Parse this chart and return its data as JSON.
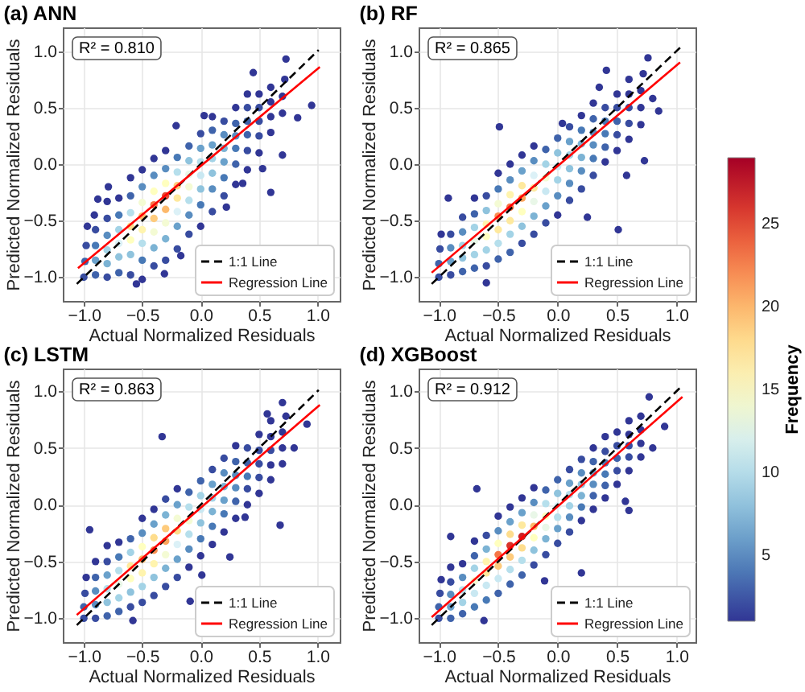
{
  "chart_data": [
    {
      "type": "scatter",
      "title": "(a) ANN",
      "xlabel": "Actual Normalized Residuals",
      "ylabel": "Predicted Normalized Residuals",
      "annotations": [
        "R² = 0.810"
      ],
      "xlim": [
        -1.18,
        1.19
      ],
      "ylim": [
        -1.21,
        1.21
      ],
      "xticks": [
        {
          "value": -1,
          "label": "−1.0"
        },
        {
          "value": -0.5,
          "label": "−0.5"
        },
        {
          "value": 0,
          "label": "0.0"
        },
        {
          "value": 0.5,
          "label": "0.5"
        },
        {
          "value": 1,
          "label": "1.0"
        }
      ],
      "yticks": [
        {
          "value": -1,
          "label": "−1.0"
        },
        {
          "value": -0.5,
          "label": "−0.5"
        },
        {
          "value": 0,
          "label": "0.0"
        },
        {
          "value": 0.5,
          "label": "0.5"
        },
        {
          "value": 1,
          "label": "1.0"
        }
      ],
      "grid": true,
      "legend": "bottom right",
      "clabel": "Frequency",
      "clim": [
        1,
        29
      ],
      "cticks": [
        5,
        10,
        15,
        20,
        25
      ],
      "series": [
        {
          "type": "scatter",
          "marker": "circle",
          "x": [
            -1,
            -0.99,
            -0.98,
            -0.97,
            -0.9,
            -0.9,
            -0.9,
            -0.9,
            -0.91,
            -0.8,
            -0.8,
            -0.8,
            -0.8,
            -0.8,
            -0.8,
            -0.7,
            -0.7,
            -0.7,
            -0.7,
            -0.7,
            -0.7,
            -0.6,
            -0.6,
            -0.6,
            -0.6,
            -0.6,
            -0.6,
            -0.6,
            -0.5,
            -0.5,
            -0.5,
            -0.5,
            -0.5,
            -0.5,
            -0.5,
            -0.5,
            -0.4,
            -0.4,
            -0.4,
            -0.4,
            -0.4,
            -0.4,
            -0.4,
            -0.4,
            -0.3,
            -0.3,
            -0.3,
            -0.3,
            -0.3,
            -0.3,
            -0.3,
            -0.3,
            -0.2,
            -0.2,
            -0.2,
            -0.2,
            -0.2,
            -0.2,
            -0.2,
            -0.21,
            -0.1,
            -0.1,
            -0.1,
            -0.1,
            -0.1,
            -0.1,
            -0.1,
            0,
            0,
            0,
            0,
            0,
            0,
            0,
            0.03,
            0.1,
            0.1,
            0.1,
            0.1,
            0.1,
            0.1,
            0.1,
            0.2,
            0.2,
            0.2,
            0.2,
            0.2,
            0.2,
            0.3,
            0.3,
            0.3,
            0.3,
            0.3,
            0.3,
            0.4,
            0.4,
            0.4,
            0.4,
            0.4,
            0.4,
            0.5,
            0.5,
            0.5,
            0.5,
            0.5,
            0.6,
            0.6,
            0.6,
            0.6,
            0.7,
            0.7,
            0.72,
            0.45,
            0.73,
            0.95,
            0.83,
            0.7,
            0.6,
            0.22,
            -0.55,
            -0.31,
            -0.17,
            0.53,
            0.36,
            -0.88,
            -0.79
          ],
          "values": [
            -1,
            -0.86,
            -0.72,
            -0.55,
            -0.98,
            -0.85,
            -0.72,
            -0.58,
            -0.45,
            -1,
            -0.88,
            -0.76,
            -0.63,
            -0.48,
            -0.33,
            -0.96,
            -0.82,
            -0.7,
            -0.58,
            -0.45,
            -0.3,
            -0.98,
            -0.8,
            -0.67,
            -0.55,
            -0.43,
            -0.28,
            -0.12,
            -1.02,
            -0.85,
            -0.7,
            -0.58,
            -0.46,
            -0.34,
            -0.2,
            -0.05,
            -0.9,
            -0.74,
            -0.6,
            -0.48,
            -0.36,
            -0.24,
            -0.1,
            0.05,
            -0.85,
            -0.66,
            -0.52,
            -0.4,
            -0.28,
            -0.17,
            -0.04,
            0.12,
            -0.75,
            -0.55,
            -0.42,
            -0.3,
            -0.19,
            -0.07,
            0.06,
            0.34,
            -0.62,
            -0.45,
            -0.32,
            -0.2,
            -0.09,
            0.03,
            0.16,
            -0.55,
            -0.36,
            -0.22,
            -0.1,
            0.02,
            0.14,
            0.27,
            0.43,
            -0.42,
            -0.22,
            -0.08,
            0.05,
            0.17,
            0.3,
            0.42,
            -0.28,
            -0.12,
            0.02,
            0.14,
            0.26,
            0.38,
            -0.18,
            0,
            0.14,
            0.25,
            0.36,
            0.5,
            -0.05,
            0.12,
            0.26,
            0.38,
            0.5,
            0.62,
            0.1,
            0.25,
            0.38,
            0.5,
            0.62,
            0.28,
            0.42,
            0.55,
            0.68,
            0.45,
            0.6,
            0.75,
            0.81,
            0.93,
            0.52,
            0.41,
            0.08,
            -0.25,
            -0.38,
            -1.06,
            -0.97,
            -0.81,
            -0.04,
            -0.17,
            -0.31,
            -0.2
          ],
          "colors": [
            "#384ca0",
            "#3f63ab",
            "#384ca0",
            "#313695",
            "#3f63ab",
            "#6aa1cb",
            "#4879b6",
            "#384ca0",
            "#313695",
            "#384ca0",
            "#7cb3d4",
            "#a3d3e6",
            "#598dc0",
            "#384ca0",
            "#313695",
            "#3f63ab",
            "#8fc3dd",
            "#dcf1f7",
            "#a3d3e6",
            "#4879b6",
            "#313695",
            "#384ca0",
            "#8fc3dd",
            "#ffffbf",
            "#fedd8d",
            "#b6dfec",
            "#3f63ab",
            "#313695",
            "#313695",
            "#4879b6",
            "#b6dfec",
            "#fff4ae",
            "#fdb96b",
            "#f4fbd4",
            "#598dc0",
            "#313695",
            "#384ca0",
            "#7cb3d4",
            "#f4fbd4",
            "#fecb7c",
            "#f57647",
            "#ffffbf",
            "#598dc0",
            "#313695",
            "#384ca0",
            "#7cb3d4",
            "#f4fbd4",
            "#fdb96b",
            "#e44a33",
            "#ffffbf",
            "#598dc0",
            "#313695",
            "#384ca0",
            "#6aa1cb",
            "#dcf1f7",
            "#fee99e",
            "#fecb7c",
            "#b6dfec",
            "#4879b6",
            "#313695",
            "#384ca0",
            "#598dc0",
            "#b6dfec",
            "#f4fbd4",
            "#e9f7e8",
            "#8fc3dd",
            "#3f63ab",
            "#313695",
            "#4879b6",
            "#8fc3dd",
            "#c9e8f2",
            "#b6dfec",
            "#6aa1cb",
            "#384ca0",
            "#313695",
            "#384ca0",
            "#598dc0",
            "#8fc3dd",
            "#a3d3e6",
            "#6aa1cb",
            "#3f63ab",
            "#313695",
            "#384ca0",
            "#4879b6",
            "#6aa1cb",
            "#7cb3d4",
            "#598dc0",
            "#384ca0",
            "#313695",
            "#3f63ab",
            "#4879b6",
            "#598dc0",
            "#3f63ab",
            "#313695",
            "#313695",
            "#384ca0",
            "#3f63ab",
            "#3f63ab",
            "#384ca0",
            "#313695",
            "#313695",
            "#384ca0",
            "#384ca0",
            "#384ca0",
            "#313695",
            "#313695",
            "#313695",
            "#313695",
            "#313695",
            "#313695",
            "#313695",
            "#313695",
            "#313695",
            "#313695",
            "#313695",
            "#313695",
            "#313695",
            "#313695",
            "#313695",
            "#313695",
            "#313695",
            "#313695",
            "#313695",
            "#313695",
            "#313695",
            "#313695"
          ]
        },
        {
          "type": "line",
          "name": "1:1 Line",
          "color": "#000000",
          "line_style": "dashed",
          "x": [
            -1.06,
            1.01
          ],
          "values": [
            -1.06,
            1.01
          ]
        },
        {
          "type": "line",
          "name": "Regression Line",
          "color": "#ff0000",
          "line_style": "solid",
          "x": [
            -1.05,
            1.02
          ],
          "values": [
            -0.92,
            0.86
          ]
        }
      ]
    },
    {
      "type": "scatter",
      "title": "(b) RF",
      "xlabel": "Actual Normalized Residuals",
      "ylabel": "Predicted Normalized Residuals",
      "annotations": [
        "R² = 0.865"
      ],
      "xlim": [
        -1.17,
        1.16
      ],
      "ylim": [
        -1.21,
        1.21
      ],
      "xticks": [
        {
          "value": -1,
          "label": "−1.0"
        },
        {
          "value": -0.5,
          "label": "−0.5"
        },
        {
          "value": 0,
          "label": "0.0"
        },
        {
          "value": 0.5,
          "label": "0.5"
        },
        {
          "value": 1,
          "label": "1.0"
        }
      ],
      "yticks": [
        {
          "value": -1,
          "label": "−1.0"
        },
        {
          "value": -0.5,
          "label": "−0.5"
        },
        {
          "value": 0,
          "label": "0.0"
        },
        {
          "value": 0.5,
          "label": "0.5"
        },
        {
          "value": 1,
          "label": "1.0"
        }
      ],
      "grid": true,
      "legend": "bottom right",
      "series": [
        {
          "type": "scatter",
          "marker": "circle",
          "x": [
            -1,
            -1,
            -0.99,
            -0.98,
            -0.9,
            -0.9,
            -0.9,
            -0.9,
            -0.92,
            -0.8,
            -0.8,
            -0.8,
            -0.8,
            -0.8,
            -0.7,
            -0.7,
            -0.7,
            -0.7,
            -0.7,
            -0.7,
            -0.6,
            -0.6,
            -0.6,
            -0.6,
            -0.6,
            -0.6,
            -0.5,
            -0.5,
            -0.5,
            -0.5,
            -0.5,
            -0.5,
            -0.5,
            -0.4,
            -0.4,
            -0.4,
            -0.4,
            -0.4,
            -0.4,
            -0.4,
            -0.3,
            -0.3,
            -0.3,
            -0.3,
            -0.3,
            -0.3,
            -0.3,
            -0.2,
            -0.2,
            -0.2,
            -0.2,
            -0.2,
            -0.2,
            -0.2,
            -0.1,
            -0.1,
            -0.1,
            -0.1,
            -0.1,
            -0.1,
            0,
            0,
            0,
            0,
            0,
            0,
            0.04,
            0.1,
            0.1,
            0.1,
            0.1,
            0.1,
            0.1,
            0.2,
            0.2,
            0.2,
            0.2,
            0.2,
            0.2,
            0.3,
            0.3,
            0.3,
            0.3,
            0.3,
            0.3,
            0.4,
            0.4,
            0.4,
            0.4,
            0.4,
            0.41,
            0.5,
            0.5,
            0.5,
            0.5,
            0.5,
            0.6,
            0.6,
            0.6,
            0.6,
            0.6,
            0.7,
            0.7,
            0.7,
            0.72,
            -0.49,
            0.51,
            0.73,
            0.76,
            0.8,
            0.85,
            0.25,
            -0.6,
            0.58,
            0.35
          ],
          "values": [
            -1,
            -0.88,
            -0.75,
            -0.62,
            -0.98,
            -0.86,
            -0.74,
            -0.62,
            -0.3,
            -0.95,
            -0.83,
            -0.72,
            -0.6,
            -0.47,
            -0.92,
            -0.8,
            -0.68,
            -0.56,
            -0.44,
            -0.3,
            -0.9,
            -0.76,
            -0.64,
            -0.53,
            -0.41,
            -0.28,
            -0.84,
            -0.7,
            -0.58,
            -0.46,
            -0.35,
            -0.22,
            -0.08,
            -0.78,
            -0.62,
            -0.5,
            -0.38,
            -0.27,
            -0.14,
            0,
            -0.7,
            -0.55,
            -0.42,
            -0.3,
            -0.19,
            -0.06,
            0.08,
            -0.62,
            -0.46,
            -0.33,
            -0.21,
            -0.1,
            0.03,
            0.16,
            -0.52,
            -0.37,
            -0.24,
            -0.12,
            0,
            0.13,
            -0.45,
            -0.28,
            -0.14,
            -0.02,
            0.1,
            0.23,
            0.36,
            -0.32,
            -0.17,
            -0.04,
            0.08,
            0.2,
            0.33,
            -0.22,
            -0.06,
            0.06,
            0.18,
            0.3,
            0.43,
            -0.1,
            0.05,
            0.17,
            0.28,
            0.4,
            0.54,
            0.02,
            0.15,
            0.27,
            0.38,
            0.5,
            0.83,
            0.12,
            0.26,
            0.38,
            0.5,
            0.62,
            0.22,
            0.36,
            0.5,
            0.62,
            0.75,
            0.35,
            0.5,
            0.65,
            0.8,
            0.33,
            -0.58,
            0.03,
            0.94,
            0.58,
            0.47,
            -0.47,
            -1.05,
            -0.1,
            0.68
          ],
          "colors": [
            "#384ca0",
            "#3f63ab",
            "#384ca0",
            "#313695",
            "#384ca0",
            "#6aa1cb",
            "#598dc0",
            "#384ca0",
            "#313695",
            "#3f63ab",
            "#8fc3dd",
            "#a3d3e6",
            "#598dc0",
            "#384ca0",
            "#3f63ab",
            "#a3d3e6",
            "#e9f7e8",
            "#a3d3e6",
            "#3f63ab",
            "#313695",
            "#384ca0",
            "#a3d3e6",
            "#ffffbf",
            "#fff4ae",
            "#8fc3dd",
            "#384ca0",
            "#3f63ab",
            "#b6dfec",
            "#fee99e",
            "#f98e52",
            "#f4fbd4",
            "#4879b6",
            "#313695",
            "#3f63ab",
            "#a3d3e6",
            "#fee99e",
            "#f57647",
            "#fff4ae",
            "#598dc0",
            "#313695",
            "#384ca0",
            "#8fc3dd",
            "#ffffbf",
            "#fca55d",
            "#fee99e",
            "#6aa1cb",
            "#313695",
            "#384ca0",
            "#7cb3d4",
            "#e9f7e8",
            "#fee99e",
            "#dcf1f7",
            "#598dc0",
            "#313695",
            "#384ca0",
            "#6aa1cb",
            "#c9e8f2",
            "#f4fbd4",
            "#a3d3e6",
            "#3f63ab",
            "#313695",
            "#598dc0",
            "#a3d3e6",
            "#c9e8f2",
            "#8fc3dd",
            "#3f63ab",
            "#313695",
            "#384ca0",
            "#598dc0",
            "#8fc3dd",
            "#a3d3e6",
            "#6aa1cb",
            "#384ca0",
            "#384ca0",
            "#598dc0",
            "#7cb3d4",
            "#7cb3d4",
            "#4879b6",
            "#313695",
            "#384ca0",
            "#4879b6",
            "#598dc0",
            "#598dc0",
            "#3f63ab",
            "#313695",
            "#313695",
            "#3f63ab",
            "#4879b6",
            "#4879b6",
            "#384ca0",
            "#313695",
            "#313695",
            "#384ca0",
            "#3f63ab",
            "#384ca0",
            "#313695",
            "#313695",
            "#384ca0",
            "#384ca0",
            "#313695",
            "#313695",
            "#313695",
            "#313695",
            "#313695",
            "#313695",
            "#313695",
            "#313695",
            "#313695",
            "#313695",
            "#313695",
            "#313695",
            "#313695",
            "#313695",
            "#313695",
            "#313695"
          ]
        },
        {
          "type": "line",
          "name": "1:1 Line",
          "color": "#000000",
          "line_style": "dashed",
          "x": [
            -1.06,
            1.03
          ],
          "values": [
            -1.06,
            1.03
          ]
        },
        {
          "type": "line",
          "name": "Regression Line",
          "color": "#ff0000",
          "line_style": "solid",
          "x": [
            -1.06,
            1.03
          ],
          "values": [
            -0.96,
            0.9
          ]
        }
      ]
    },
    {
      "type": "scatter",
      "title": "(c) LSTM",
      "xlabel": "Actual Normalized Residuals",
      "ylabel": "Predicted Normalized Residuals",
      "annotations": [
        "R² = 0.863"
      ],
      "xlim": [
        -1.18,
        1.19
      ],
      "ylim": [
        -1.21,
        1.2
      ],
      "xticks": [
        {
          "value": -1,
          "label": "−1.0"
        },
        {
          "value": -0.5,
          "label": "−0.5"
        },
        {
          "value": 0,
          "label": "0.0"
        },
        {
          "value": 0.5,
          "label": "0.5"
        },
        {
          "value": 1,
          "label": "1.0"
        }
      ],
      "yticks": [
        {
          "value": -1,
          "label": "−1.0"
        },
        {
          "value": -0.5,
          "label": "−0.5"
        },
        {
          "value": 0,
          "label": "0.0"
        },
        {
          "value": 0.5,
          "label": "0.5"
        },
        {
          "value": 1,
          "label": "1.0"
        }
      ],
      "grid": true,
      "legend": "bottom right",
      "series": [
        {
          "type": "scatter",
          "marker": "circle",
          "x": [
            -1,
            -1,
            -0.99,
            -0.98,
            -0.9,
            -0.9,
            -0.9,
            -0.9,
            -0.9,
            -0.8,
            -0.8,
            -0.8,
            -0.8,
            -0.8,
            -0.8,
            -0.7,
            -0.7,
            -0.7,
            -0.7,
            -0.7,
            -0.7,
            -0.6,
            -0.6,
            -0.6,
            -0.6,
            -0.6,
            -0.6,
            -0.5,
            -0.5,
            -0.5,
            -0.5,
            -0.5,
            -0.5,
            -0.5,
            -0.4,
            -0.4,
            -0.4,
            -0.4,
            -0.4,
            -0.4,
            -0.4,
            -0.3,
            -0.3,
            -0.3,
            -0.3,
            -0.3,
            -0.3,
            -0.3,
            -0.2,
            -0.2,
            -0.2,
            -0.2,
            -0.2,
            -0.2,
            -0.2,
            -0.1,
            -0.1,
            -0.1,
            -0.1,
            -0.1,
            -0.1,
            0,
            0,
            0,
            0,
            0,
            0,
            0.1,
            0.1,
            0.1,
            0.1,
            0.1,
            0.1,
            0.2,
            0.2,
            0.2,
            0.2,
            0.2,
            0.2,
            0.3,
            0.3,
            0.3,
            0.3,
            0.3,
            0.3,
            0.4,
            0.4,
            0.4,
            0.4,
            0.4,
            0.5,
            0.5,
            0.5,
            0.5,
            0.5,
            0.6,
            0.6,
            0.6,
            0.6,
            0.6,
            0.7,
            0.7,
            0.7,
            0.73,
            -0.33,
            0.68,
            0.38,
            0.25,
            0.01,
            -0.09,
            0.7,
            0.57,
            0.91,
            0.8,
            -0.58,
            -0.95
          ],
          "values": [
            -1,
            -0.9,
            -0.78,
            -0.64,
            -1,
            -0.88,
            -0.76,
            -0.64,
            -0.5,
            -0.98,
            -0.86,
            -0.74,
            -0.62,
            -0.5,
            -0.36,
            -0.94,
            -0.82,
            -0.7,
            -0.58,
            -0.46,
            -0.33,
            -0.9,
            -0.77,
            -0.65,
            -0.54,
            -0.42,
            -0.3,
            -0.86,
            -0.72,
            -0.6,
            -0.48,
            -0.37,
            -0.25,
            -0.12,
            -0.8,
            -0.64,
            -0.52,
            -0.4,
            -0.29,
            -0.17,
            -0.04,
            -0.72,
            -0.56,
            -0.44,
            -0.32,
            -0.21,
            -0.09,
            0.05,
            -0.64,
            -0.48,
            -0.35,
            -0.23,
            -0.12,
            0,
            0.14,
            -0.55,
            -0.39,
            -0.26,
            -0.14,
            -0.02,
            0.11,
            -0.45,
            -0.3,
            -0.16,
            -0.04,
            0.08,
            0.21,
            -0.35,
            -0.19,
            -0.06,
            0.06,
            0.18,
            0.31,
            -0.24,
            -0.08,
            0.04,
            0.16,
            0.28,
            0.41,
            -0.12,
            0.03,
            0.15,
            0.26,
            0.38,
            0.52,
            0,
            0.14,
            0.25,
            0.37,
            0.5,
            0.1,
            0.24,
            0.36,
            0.48,
            0.62,
            0.22,
            0.35,
            0.48,
            0.6,
            0.74,
            0.36,
            0.5,
            0.64,
            0.78,
            0.6,
            -0.18,
            -0.11,
            -0.46,
            -0.62,
            -0.85,
            0.9,
            0.8,
            0.71,
            0.5,
            -1.02,
            -0.22
          ],
          "colors": [
            "#384ca0",
            "#3f63ab",
            "#384ca0",
            "#313695",
            "#384ca0",
            "#598dc0",
            "#598dc0",
            "#3f63ab",
            "#313695",
            "#3f63ab",
            "#8fc3dd",
            "#b6dfec",
            "#6aa1cb",
            "#384ca0",
            "#313695",
            "#3f63ab",
            "#a3d3e6",
            "#e9f7e8",
            "#b6dfec",
            "#4879b6",
            "#313695",
            "#384ca0",
            "#8fc3dd",
            "#ffffbf",
            "#fee99e",
            "#a3d3e6",
            "#3f63ab",
            "#384ca0",
            "#a3d3e6",
            "#fff4ae",
            "#fdb96b",
            "#ffffbf",
            "#598dc0",
            "#313695",
            "#384ca0",
            "#8fc3dd",
            "#fff4ae",
            "#f98e52",
            "#fedd8d",
            "#6aa1cb",
            "#313695",
            "#384ca0",
            "#7cb3d4",
            "#f4fbd4",
            "#fca55d",
            "#fecb7c",
            "#7cb3d4",
            "#384ca0",
            "#384ca0",
            "#6aa1cb",
            "#dcf1f7",
            "#fedd8d",
            "#f4fbd4",
            "#6aa1cb",
            "#313695",
            "#313695",
            "#598dc0",
            "#b6dfec",
            "#f4fbd4",
            "#b6dfec",
            "#3f63ab",
            "#313695",
            "#4879b6",
            "#8fc3dd",
            "#c9e8f2",
            "#a3d3e6",
            "#3f63ab",
            "#313695",
            "#4879b6",
            "#7cb3d4",
            "#a3d3e6",
            "#6aa1cb",
            "#384ca0",
            "#313695",
            "#4879b6",
            "#6aa1cb",
            "#7cb3d4",
            "#598dc0",
            "#384ca0",
            "#313695",
            "#3f63ab",
            "#598dc0",
            "#598dc0",
            "#3f63ab",
            "#313695",
            "#313695",
            "#384ca0",
            "#4879b6",
            "#3f63ab",
            "#384ca0",
            "#313695",
            "#384ca0",
            "#384ca0",
            "#384ca0",
            "#313695",
            "#313695",
            "#313695",
            "#384ca0",
            "#313695",
            "#313695",
            "#313695",
            "#313695",
            "#313695",
            "#313695",
            "#313695",
            "#313695",
            "#313695",
            "#313695",
            "#313695",
            "#313695",
            "#313695",
            "#313695",
            "#313695",
            "#313695",
            "#313695",
            "#313695"
          ]
        },
        {
          "type": "line",
          "name": "1:1 Line",
          "color": "#000000",
          "line_style": "dashed",
          "x": [
            -1.06,
            1.01
          ],
          "values": [
            -1.06,
            1.01
          ]
        },
        {
          "type": "line",
          "name": "Regression Line",
          "color": "#ff0000",
          "line_style": "solid",
          "x": [
            -1.06,
            1.02
          ],
          "values": [
            -0.97,
            0.88
          ]
        }
      ]
    },
    {
      "type": "scatter",
      "title": "(d) XGBoost",
      "xlabel": "Actual Normalized Residuals",
      "ylabel": "Predicted Normalized Residuals",
      "annotations": [
        "R² = 0.912"
      ],
      "xlim": [
        -1.17,
        1.16
      ],
      "ylim": [
        -1.21,
        1.2
      ],
      "xticks": [
        {
          "value": -1,
          "label": "−1.0"
        },
        {
          "value": -0.5,
          "label": "−0.5"
        },
        {
          "value": 0,
          "label": "0.0"
        },
        {
          "value": 0.5,
          "label": "0.5"
        },
        {
          "value": 1,
          "label": "1.0"
        }
      ],
      "yticks": [
        {
          "value": -1,
          "label": "−1.0"
        },
        {
          "value": -0.5,
          "label": "−0.5"
        },
        {
          "value": 0,
          "label": "0.0"
        },
        {
          "value": 0.5,
          "label": "0.5"
        },
        {
          "value": 1,
          "label": "1.0"
        }
      ],
      "grid": true,
      "legend": "bottom right",
      "series": [
        {
          "type": "scatter",
          "marker": "circle",
          "x": [
            -1,
            -1,
            -0.99,
            -0.98,
            -0.9,
            -0.9,
            -0.9,
            -0.9,
            -0.9,
            -0.8,
            -0.8,
            -0.8,
            -0.8,
            -0.8,
            -0.7,
            -0.7,
            -0.7,
            -0.7,
            -0.7,
            -0.7,
            -0.6,
            -0.6,
            -0.6,
            -0.6,
            -0.6,
            -0.6,
            -0.5,
            -0.5,
            -0.5,
            -0.5,
            -0.5,
            -0.5,
            -0.5,
            -0.4,
            -0.4,
            -0.4,
            -0.4,
            -0.4,
            -0.4,
            -0.4,
            -0.3,
            -0.3,
            -0.3,
            -0.3,
            -0.3,
            -0.3,
            -0.3,
            -0.2,
            -0.2,
            -0.2,
            -0.2,
            -0.2,
            -0.2,
            -0.2,
            -0.1,
            -0.1,
            -0.1,
            -0.1,
            -0.1,
            -0.1,
            0,
            0,
            0,
            0,
            0,
            0,
            0.1,
            0.1,
            0.1,
            0.1,
            0.1,
            0.1,
            0.2,
            0.2,
            0.2,
            0.2,
            0.2,
            0.2,
            0.3,
            0.3,
            0.3,
            0.3,
            0.3,
            0.3,
            0.4,
            0.4,
            0.4,
            0.4,
            0.4,
            0.4,
            0.5,
            0.5,
            0.5,
            0.5,
            0.5,
            0.6,
            0.6,
            0.6,
            0.6,
            0.6,
            0.7,
            0.7,
            0.7,
            0.7,
            -0.68,
            -0.9,
            0.6,
            0.57,
            -0.11,
            0.77,
            0.9,
            0.8,
            -0.62,
            0.2
          ],
          "values": [
            -1,
            -0.9,
            -0.78,
            -0.66,
            -1,
            -0.9,
            -0.79,
            -0.68,
            -0.55,
            -0.96,
            -0.86,
            -0.75,
            -0.64,
            -0.52,
            -0.9,
            -0.78,
            -0.67,
            -0.56,
            -0.45,
            -0.32,
            -0.84,
            -0.71,
            -0.6,
            -0.5,
            -0.39,
            -0.27,
            -0.78,
            -0.65,
            -0.54,
            -0.44,
            -0.34,
            -0.23,
            -0.1,
            -0.7,
            -0.57,
            -0.46,
            -0.36,
            -0.26,
            -0.15,
            -0.02,
            -0.62,
            -0.49,
            -0.38,
            -0.28,
            -0.18,
            -0.07,
            0.06,
            -0.53,
            -0.4,
            -0.29,
            -0.19,
            -0.09,
            0.02,
            0.15,
            -0.44,
            -0.3,
            -0.2,
            -0.1,
            0.01,
            0.13,
            -0.34,
            -0.21,
            -0.11,
            -0.01,
            0.1,
            0.22,
            -0.24,
            -0.11,
            -0.01,
            0.09,
            0.19,
            0.31,
            -0.14,
            -0.02,
            0.08,
            0.18,
            0.28,
            0.4,
            -0.04,
            0.08,
            0.18,
            0.28,
            0.38,
            0.5,
            0.06,
            0.17,
            0.27,
            0.37,
            0.47,
            0.6,
            0.18,
            0.3,
            0.41,
            0.52,
            0.64,
            0.3,
            0.42,
            0.52,
            0.62,
            0.74,
            0.42,
            0.54,
            0.66,
            0.78,
            0.14,
            -0.28,
            -0.05,
            0.03,
            -0.67,
            0.95,
            0.69,
            0.5,
            -1.02,
            -0.6
          ],
          "colors": [
            "#384ca0",
            "#3f63ab",
            "#384ca0",
            "#313695",
            "#3f63ab",
            "#6aa1cb",
            "#598dc0",
            "#384ca0",
            "#313695",
            "#3f63ab",
            "#a3d3e6",
            "#b6dfec",
            "#598dc0",
            "#313695",
            "#4879b6",
            "#c9e8f2",
            "#f4fbd4",
            "#a3d3e6",
            "#3f63ab",
            "#313695",
            "#4879b6",
            "#c9e8f2",
            "#fee99e",
            "#fff4ae",
            "#7cb3d4",
            "#384ca0",
            "#3f63ab",
            "#c9e8f2",
            "#fecb7c",
            "#f57647",
            "#ffffbf",
            "#598dc0",
            "#313695",
            "#3f63ab",
            "#b6dfec",
            "#fecb7c",
            "#d93429",
            "#fedd8d",
            "#6aa1cb",
            "#313695",
            "#3f63ab",
            "#b6dfec",
            "#fedd8d",
            "#c92227",
            "#fee99e",
            "#6aa1cb",
            "#313695",
            "#384ca0",
            "#8fc3dd",
            "#ffffbf",
            "#fdb96b",
            "#e9f7e8",
            "#598dc0",
            "#313695",
            "#384ca0",
            "#7cb3d4",
            "#e9f7e8",
            "#ffffbf",
            "#b6dfec",
            "#3f63ab",
            "#384ca0",
            "#6aa1cb",
            "#b6dfec",
            "#dcf1f7",
            "#8fc3dd",
            "#3f63ab",
            "#384ca0",
            "#598dc0",
            "#a3d3e6",
            "#b6dfec",
            "#6aa1cb",
            "#384ca0",
            "#313695",
            "#4879b6",
            "#7cb3d4",
            "#8fc3dd",
            "#598dc0",
            "#384ca0",
            "#313695",
            "#3f63ab",
            "#598dc0",
            "#6aa1cb",
            "#3f63ab",
            "#313695",
            "#313695",
            "#3f63ab",
            "#4879b6",
            "#4879b6",
            "#384ca0",
            "#313695",
            "#313695",
            "#384ca0",
            "#3f63ab",
            "#384ca0",
            "#313695",
            "#313695",
            "#384ca0",
            "#384ca0",
            "#313695",
            "#313695",
            "#313695",
            "#313695",
            "#313695",
            "#313695",
            "#313695",
            "#313695",
            "#313695",
            "#313695",
            "#313695",
            "#313695",
            "#313695",
            "#313695",
            "#313695",
            "#313695"
          ]
        },
        {
          "type": "line",
          "name": "1:1 Line",
          "color": "#000000",
          "line_style": "dashed",
          "x": [
            -1.06,
            1.05
          ],
          "values": [
            -1.06,
            1.05
          ]
        },
        {
          "type": "line",
          "name": "Regression Line",
          "color": "#ff0000",
          "line_style": "solid",
          "x": [
            -1.06,
            1.05
          ],
          "values": [
            -0.99,
            0.95
          ]
        }
      ]
    }
  ]
}
